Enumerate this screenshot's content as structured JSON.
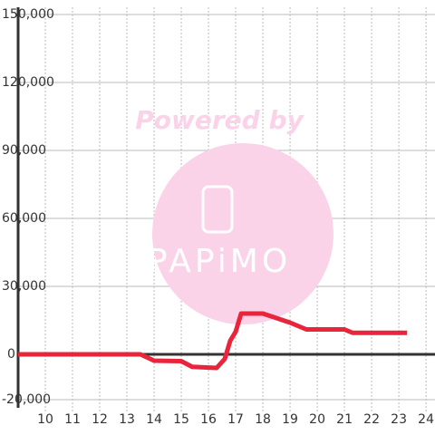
{
  "chart_data": {
    "type": "line",
    "x": [
      9,
      13.5,
      14,
      15,
      15.4,
      16.3,
      16.6,
      16.8,
      17,
      17.2,
      18,
      18.5,
      19,
      19.6,
      20,
      21,
      21.3,
      23.3
    ],
    "series": [
      {
        "color": "#e8253a",
        "values": [
          0,
          0,
          -2800,
          -3000,
          -5500,
          -6000,
          -2000,
          6000,
          10000,
          18000,
          18000,
          16000,
          14000,
          11000,
          11000,
          11000,
          9500,
          9500
        ]
      }
    ],
    "xlim": [
      9,
      24.33
    ],
    "ylim": [
      -20000,
      150000
    ],
    "xticks": [
      10,
      11,
      12,
      13,
      14,
      15,
      16,
      17,
      18,
      19,
      20,
      21,
      22,
      23,
      24
    ],
    "yticks": [
      {
        "value": -20000,
        "label": "-20,000"
      },
      0,
      {
        "value": 30000,
        "label": "30,000"
      },
      {
        "value": 60000,
        "label": "60,000"
      },
      {
        "value": 90000,
        "label": "90,000"
      },
      {
        "value": 120000,
        "label": "120,000"
      },
      {
        "value": 150000,
        "label": "150,000"
      }
    ],
    "grid": true
  },
  "watermark": {
    "line1": "Powered by",
    "line2": "PAPiMO"
  }
}
